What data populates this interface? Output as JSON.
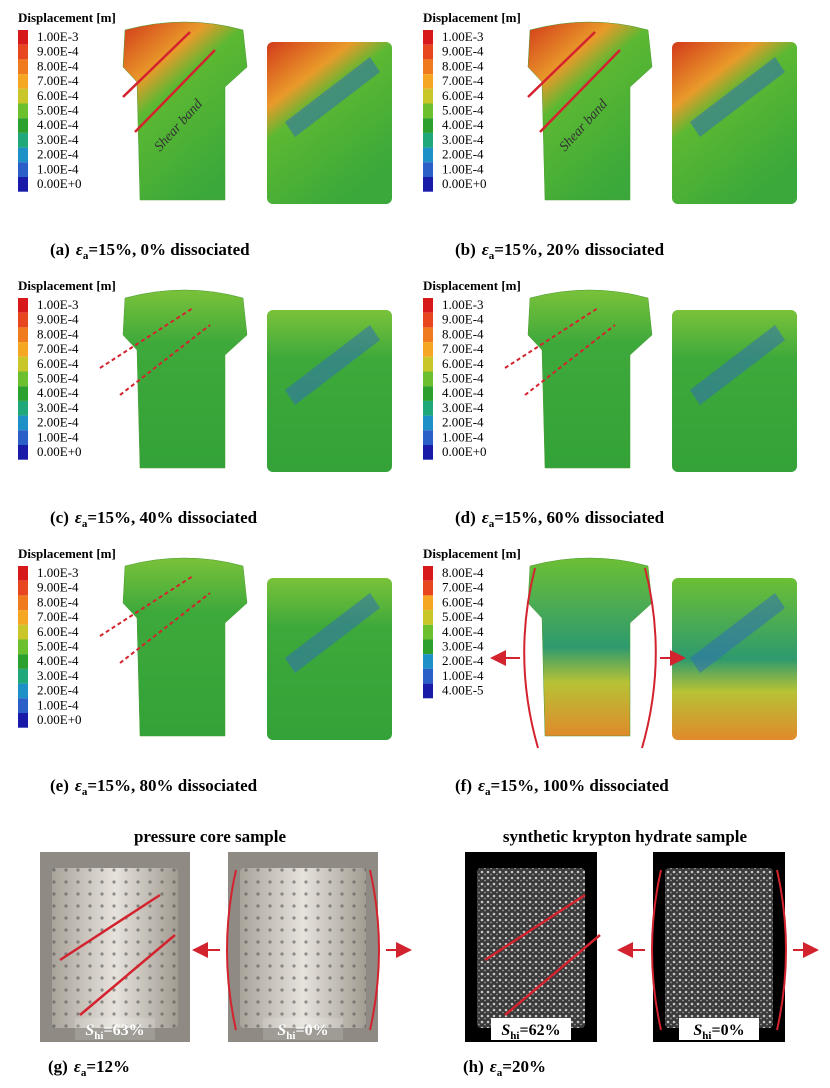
{
  "panels": [
    {
      "legend": {
        "title": "Displacement [m]",
        "labels": [
          "1.00E-3",
          "9.00E-4",
          "8.00E-4",
          "7.00E-4",
          "6.00E-4",
          "5.00E-4",
          "4.00E-4",
          "3.00E-4",
          "2.00E-4",
          "1.00E-4",
          "0.00E+0"
        ]
      },
      "annotation": "Shear band",
      "caption": {
        "label": "(a)",
        "symbol": "ε",
        "subscript": "a",
        "text": "=15%, 0% dissociated"
      }
    },
    {
      "legend": {
        "title": "Displacement [m]",
        "labels": [
          "1.00E-3",
          "9.00E-4",
          "8.00E-4",
          "7.00E-4",
          "6.00E-4",
          "5.00E-4",
          "4.00E-4",
          "3.00E-4",
          "2.00E-4",
          "1.00E-4",
          "0.00E+0"
        ]
      },
      "annotation": "Shear band",
      "caption": {
        "label": "(b)",
        "symbol": "ε",
        "subscript": "a",
        "text": "=15%, 20% dissociated"
      }
    },
    {
      "legend": {
        "title": "Displacement [m]",
        "labels": [
          "1.00E-3",
          "9.00E-4",
          "8.00E-4",
          "7.00E-4",
          "6.00E-4",
          "5.00E-4",
          "4.00E-4",
          "3.00E-4",
          "2.00E-4",
          "1.00E-4",
          "0.00E+0"
        ]
      },
      "caption": {
        "label": "(c)",
        "symbol": "ε",
        "subscript": "a",
        "text": "=15%, 40% dissociated"
      }
    },
    {
      "legend": {
        "title": "Displacement [m]",
        "labels": [
          "1.00E-3",
          "9.00E-4",
          "8.00E-4",
          "7.00E-4",
          "6.00E-4",
          "5.00E-4",
          "4.00E-4",
          "3.00E-4",
          "2.00E-4",
          "1.00E-4",
          "0.00E+0"
        ]
      },
      "caption": {
        "label": "(d)",
        "symbol": "ε",
        "subscript": "a",
        "text": "=15%, 60% dissociated"
      }
    },
    {
      "legend": {
        "title": "Displacement [m]",
        "labels": [
          "1.00E-3",
          "9.00E-4",
          "8.00E-4",
          "7.00E-4",
          "6.00E-4",
          "5.00E-4",
          "4.00E-4",
          "3.00E-4",
          "2.00E-4",
          "1.00E-4",
          "0.00E+0"
        ]
      },
      "caption": {
        "label": "(e)",
        "symbol": "ε",
        "subscript": "a",
        "text": "=15%, 80% dissociated"
      }
    },
    {
      "legend": {
        "title": "Displacement [m]",
        "labels": [
          "8.00E-4",
          "7.00E-4",
          "6.00E-4",
          "5.00E-4",
          "4.00E-4",
          "3.00E-4",
          "2.00E-4",
          "1.00E-4",
          "4.00E-5"
        ]
      },
      "caption": {
        "label": "(f)",
        "symbol": "ε",
        "subscript": "a",
        "text": "=15%, 100% dissociated"
      }
    }
  ],
  "experiments": [
    {
      "title": "pressure core sample",
      "photos": [
        {
          "symbol": "S",
          "subscript": "hi",
          "text": "=63%"
        },
        {
          "symbol": "S",
          "subscript": "hi",
          "text": "=0%"
        }
      ],
      "caption": {
        "label": "(g)",
        "symbol": "ε",
        "subscript": "a",
        "text": "=12%"
      }
    },
    {
      "title": "synthetic krypton hydrate sample",
      "photos": [
        {
          "symbol": "S",
          "subscript": "hi",
          "text": "=62%"
        },
        {
          "symbol": "S",
          "subscript": "hi",
          "text": "=0%"
        }
      ],
      "caption": {
        "label": "(h)",
        "symbol": "ε",
        "subscript": "a",
        "text": "=20%"
      }
    }
  ]
}
